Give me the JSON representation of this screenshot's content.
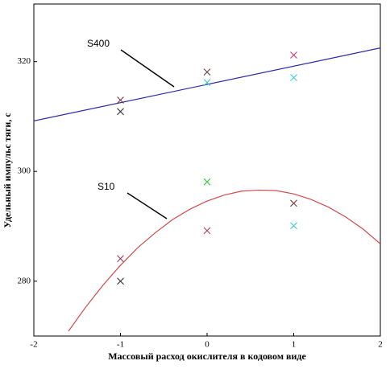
{
  "chart_data": {
    "type": "scatter",
    "xlabel": "Массовый расход окислителя в кодовом виде",
    "ylabel": "Удельный импульс тяги, с",
    "xlim": [
      -2,
      2
    ],
    "ylim": [
      270,
      330.5
    ],
    "xticks": [
      -2,
      -1,
      0,
      1,
      2
    ],
    "yticks": [
      280,
      300,
      320
    ],
    "lines": [
      {
        "color": "#2a2aa8",
        "x": [
          -2,
          2
        ],
        "values": [
          309.2,
          322.5
        ]
      },
      {
        "color": "#d24a4a",
        "x": [
          -1.6,
          -1.4,
          -1.2,
          -1,
          -0.8,
          -0.6,
          -0.4,
          -0.2,
          0,
          0.2,
          0.4,
          0.6,
          0.8,
          1,
          1.2,
          1.4,
          1.6,
          1.8,
          2
        ],
        "values": [
          270.9,
          275.3,
          279.3,
          282.9,
          286.1,
          288.8,
          291.2,
          293.1,
          294.6,
          295.7,
          296.4,
          296.6,
          296.5,
          295.9,
          294.9,
          293.5,
          291.7,
          289.5,
          286.8
        ]
      }
    ],
    "points": {
      "x": [
        -1,
        -1,
        -1,
        -1,
        0,
        0,
        0,
        0,
        1,
        1,
        1,
        1
      ],
      "values": [
        313.0,
        310.9,
        284.1,
        280.0,
        318.1,
        316.2,
        298.1,
        289.2,
        321.2,
        317.1,
        294.2,
        290.1
      ],
      "colors": [
        "#7a3a3a",
        "#3a2a2a",
        "#a03a5a",
        "#3a2a2a",
        "#6a3a3a",
        "#3cc8c8",
        "#3cc83c",
        "#b04a6a",
        "#c03a6a",
        "#3cc8d8",
        "#8a3a3a",
        "#3cc8d8"
      ]
    },
    "annotations": [
      "S400",
      "S10"
    ]
  }
}
